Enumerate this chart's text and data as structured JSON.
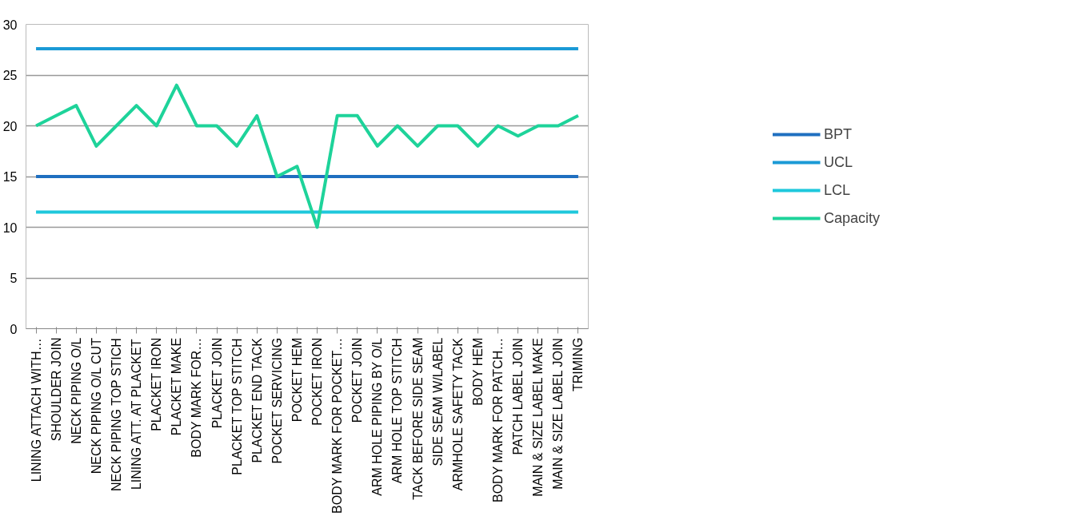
{
  "chart_data": {
    "type": "line",
    "categories": [
      "LINING ATTACH WITH…",
      "SHOULDER JOIN",
      "NECK PIPING O/L",
      "NECK PIPING O/L CUT",
      "NECK PIPING TOP STICH",
      "LINING ATT. AT PLACKET",
      "PLACKET IRON",
      "PLACKET MAKE",
      "BODY MARK FOR…",
      "PLACKET JOIN",
      "PLACKET TOP STITCH",
      "PLACKET END TACK",
      "POCKET SERVICING",
      "POCKET HEM",
      "POCKET IRON",
      "BODY MARK FOR POCKET…",
      "POCKET JOIN",
      "ARM HOLE PIPING BY O/L",
      "ARM HOLE TOP STITCH",
      "TACK BEFORE SIDE SEAM",
      "SIDE SEAM W/LABEL",
      "ARMHOLE SAFETY TACK",
      "BODY HEM",
      "BODY MARK FOR PATCH…",
      "PATCH LABEL JOIN",
      "MAIN & SIZE LABEL MAKE",
      "MAIN & SIZE LABEL JOIN",
      "TRIMING"
    ],
    "series": [
      {
        "name": "BPT",
        "color": "#1f6fc0",
        "values": [
          15,
          15,
          15,
          15,
          15,
          15,
          15,
          15,
          15,
          15,
          15,
          15,
          15,
          15,
          15,
          15,
          15,
          15,
          15,
          15,
          15,
          15,
          15,
          15,
          15,
          15,
          15,
          15
        ]
      },
      {
        "name": "UCL",
        "color": "#1b9ad6",
        "values": [
          27.6,
          27.6,
          27.6,
          27.6,
          27.6,
          27.6,
          27.6,
          27.6,
          27.6,
          27.6,
          27.6,
          27.6,
          27.6,
          27.6,
          27.6,
          27.6,
          27.6,
          27.6,
          27.6,
          27.6,
          27.6,
          27.6,
          27.6,
          27.6,
          27.6,
          27.6,
          27.6,
          27.6
        ]
      },
      {
        "name": "LCL",
        "color": "#1ec8dc",
        "values": [
          11.5,
          11.5,
          11.5,
          11.5,
          11.5,
          11.5,
          11.5,
          11.5,
          11.5,
          11.5,
          11.5,
          11.5,
          11.5,
          11.5,
          11.5,
          11.5,
          11.5,
          11.5,
          11.5,
          11.5,
          11.5,
          11.5,
          11.5,
          11.5,
          11.5,
          11.5,
          11.5,
          11.5
        ]
      },
      {
        "name": "Capacity",
        "color": "#1ed39a",
        "values": [
          20,
          21,
          22,
          18,
          20,
          22,
          20,
          24,
          20,
          20,
          18,
          21,
          15,
          16,
          10,
          21,
          21,
          18,
          20,
          18,
          20,
          20,
          18,
          20,
          19,
          20,
          20,
          21
        ]
      }
    ],
    "ylim": [
      0,
      30
    ],
    "yticks": [
      0,
      5,
      10,
      15,
      20,
      25,
      30
    ],
    "grid": "y",
    "legend": "right",
    "marker": "none",
    "line_style": "solid"
  }
}
